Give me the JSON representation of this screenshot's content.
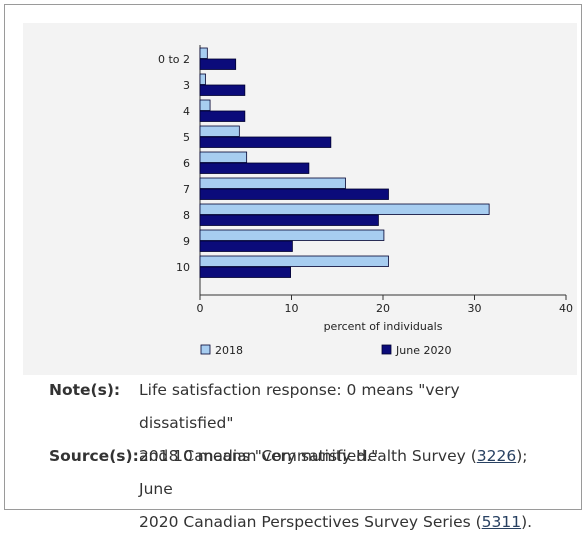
{
  "chart_data": {
    "type": "bar",
    "orientation": "horizontal",
    "categories": [
      "0 to 2",
      "3",
      "4",
      "5",
      "6",
      "7",
      "8",
      "9",
      "10"
    ],
    "series": [
      {
        "name": "2018",
        "color": "#a7cdf0",
        "values": [
          0.8,
          0.6,
          1.1,
          4.3,
          5.1,
          15.9,
          31.6,
          20.1,
          20.6
        ]
      },
      {
        "name": "June 2020",
        "color": "#0b0b7a",
        "values": [
          3.9,
          4.9,
          4.9,
          14.3,
          11.9,
          20.6,
          19.5,
          10.1,
          9.9
        ]
      }
    ],
    "xlim": [
      0,
      40
    ],
    "xticks": [
      "0",
      "10",
      "20",
      "30",
      "40"
    ],
    "xlabel": "percent of individuals",
    "legend_placement": "bottom",
    "grid": false
  },
  "notes": {
    "note_label": "Note(s):",
    "note_line1": "Life satisfaction response: 0 means \"very dissatisfied\"",
    "note_line2": "and 10 means \"very satisfied.\"",
    "source_label": "Source(s):",
    "source_line1_pre": "2018 Canadian Community Health Survey (",
    "source_link1": "3226",
    "source_line1_post": "); June",
    "source_line2_pre": "2020 Canadian Perspectives Survey Series (",
    "source_link2": "5311",
    "source_line2_post": ")."
  }
}
